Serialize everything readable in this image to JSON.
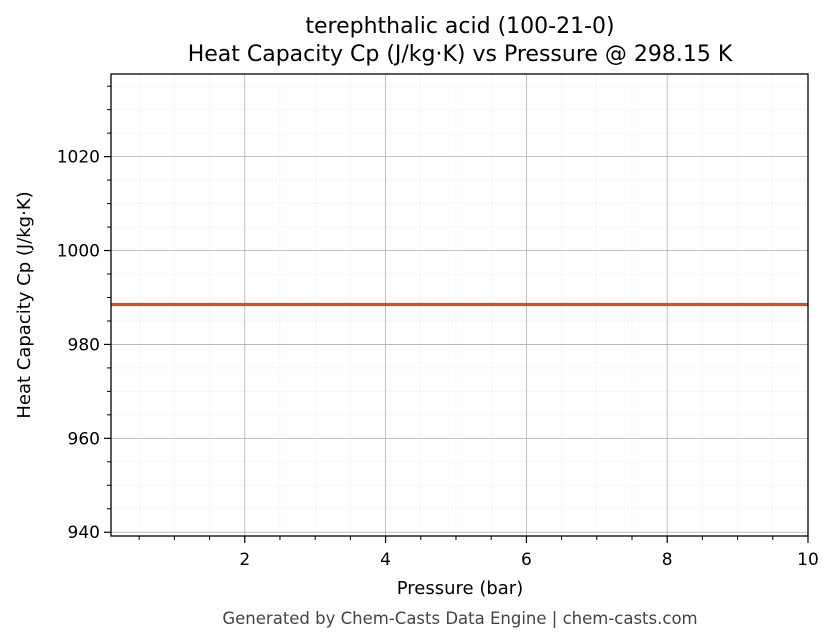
{
  "chart_data": {
    "type": "line",
    "title": "terephthalic acid (100-21-0)",
    "subtitle": "Heat Capacity Cp (J/kg·K) vs Pressure @ 298.15 K",
    "xlabel": "Pressure (bar)",
    "ylabel": "Heat Capacity Cp (J/kg·K)",
    "xlim": [
      0.1,
      10
    ],
    "ylim": [
      939.2,
      1037.6
    ],
    "x_ticks": [
      2,
      4,
      6,
      8,
      10
    ],
    "y_ticks": [
      940,
      960,
      980,
      1000,
      1020
    ],
    "grid": true,
    "series": [
      {
        "x": [
          0.1,
          10
        ],
        "y": [
          988.5,
          988.5
        ],
        "color": "#c8552b"
      }
    ]
  },
  "footer": "Generated by Chem-Casts Data Engine | chem-casts.com"
}
